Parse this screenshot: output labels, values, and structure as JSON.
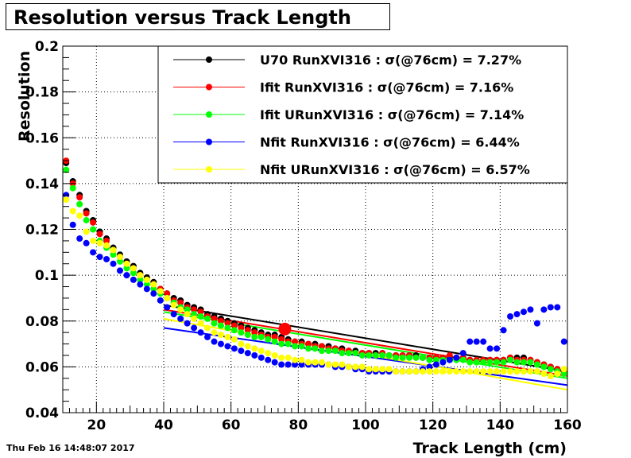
{
  "chart_data": {
    "type": "scatter",
    "title": "Resolution versus Track Length",
    "xlabel": "Track Length (cm)",
    "ylabel": "Resolution",
    "xlim": [
      10,
      160
    ],
    "ylim": [
      0.04,
      0.2
    ],
    "xticks": [
      20,
      40,
      60,
      80,
      100,
      120,
      140,
      160
    ],
    "yticks": [
      0.04,
      0.06,
      0.08,
      0.1,
      0.12,
      0.14,
      0.16,
      0.18,
      0.2
    ],
    "ytick_labels": [
      "0.04",
      "0.06",
      "0.08",
      "0.1",
      "0.12",
      "0.14",
      "0.16",
      "0.18",
      "0.2"
    ],
    "grid": true,
    "legend_position": "top-right",
    "series": [
      {
        "name": "U70  RunXVI316 : σ(@76cm) =  7.27%",
        "color": "#000000",
        "x": [
          11,
          13,
          15,
          17,
          19,
          21,
          23,
          25,
          27,
          29,
          31,
          33,
          35,
          37,
          39,
          41,
          43,
          45,
          47,
          49,
          51,
          53,
          55,
          57,
          59,
          61,
          63,
          65,
          67,
          69,
          71,
          73,
          75,
          77,
          79,
          81,
          83,
          85,
          87,
          89,
          91,
          93,
          95,
          97,
          99,
          101,
          103,
          105,
          107,
          109,
          111,
          113,
          115,
          117,
          119,
          121,
          123,
          125,
          127,
          129,
          131,
          133,
          135,
          137,
          139,
          141,
          143,
          145,
          147,
          149,
          151,
          153,
          155,
          157,
          159
        ],
        "y": [
          0.149,
          0.141,
          0.135,
          0.128,
          0.124,
          0.119,
          0.116,
          0.112,
          0.109,
          0.106,
          0.104,
          0.101,
          0.099,
          0.097,
          0.094,
          0.092,
          0.09,
          0.089,
          0.087,
          0.086,
          0.085,
          0.083,
          0.082,
          0.081,
          0.08,
          0.079,
          0.078,
          0.077,
          0.076,
          0.075,
          0.074,
          0.074,
          0.073,
          0.072,
          0.071,
          0.071,
          0.07,
          0.07,
          0.069,
          0.069,
          0.068,
          0.068,
          0.067,
          0.067,
          0.066,
          0.066,
          0.066,
          0.066,
          0.065,
          0.065,
          0.065,
          0.065,
          0.065,
          0.064,
          0.064,
          0.064,
          0.064,
          0.064,
          0.064,
          0.064,
          0.063,
          0.063,
          0.063,
          0.063,
          0.063,
          0.063,
          0.064,
          0.064,
          0.064,
          0.063,
          0.062,
          0.061,
          0.06,
          0.059,
          0.058
        ]
      },
      {
        "name": "Ifit RunXVI316 : σ(@76cm) =  7.16%",
        "color": "#ff0000",
        "x": [
          11,
          13,
          15,
          17,
          19,
          21,
          23,
          25,
          27,
          29,
          31,
          33,
          35,
          37,
          39,
          41,
          43,
          45,
          47,
          49,
          51,
          53,
          55,
          57,
          59,
          61,
          63,
          65,
          67,
          69,
          71,
          73,
          75,
          77,
          79,
          81,
          83,
          85,
          87,
          89,
          91,
          93,
          95,
          97,
          99,
          101,
          103,
          105,
          107,
          109,
          111,
          113,
          115,
          117,
          119,
          121,
          123,
          125,
          127,
          129,
          131,
          133,
          135,
          137,
          139,
          141,
          143,
          145,
          147,
          149,
          151,
          153,
          155,
          157,
          159
        ],
        "y": [
          0.15,
          0.14,
          0.134,
          0.127,
          0.123,
          0.118,
          0.115,
          0.111,
          0.108,
          0.105,
          0.103,
          0.1,
          0.098,
          0.096,
          0.094,
          0.092,
          0.089,
          0.088,
          0.086,
          0.085,
          0.084,
          0.082,
          0.081,
          0.08,
          0.079,
          0.078,
          0.077,
          0.076,
          0.075,
          0.074,
          0.073,
          0.073,
          0.072,
          0.071,
          0.071,
          0.07,
          0.07,
          0.069,
          0.069,
          0.068,
          0.068,
          0.067,
          0.067,
          0.066,
          0.066,
          0.066,
          0.065,
          0.066,
          0.065,
          0.065,
          0.065,
          0.065,
          0.064,
          0.064,
          0.064,
          0.064,
          0.064,
          0.065,
          0.064,
          0.064,
          0.063,
          0.063,
          0.063,
          0.063,
          0.063,
          0.063,
          0.064,
          0.063,
          0.063,
          0.063,
          0.062,
          0.061,
          0.06,
          0.059,
          0.058
        ]
      },
      {
        "name": "Ifit URunXVI316 : σ(@76cm) =  7.14%",
        "color": "#00ff00",
        "x": [
          11,
          13,
          15,
          17,
          19,
          21,
          23,
          25,
          27,
          29,
          31,
          33,
          35,
          37,
          39,
          41,
          43,
          45,
          47,
          49,
          51,
          53,
          55,
          57,
          59,
          61,
          63,
          65,
          67,
          69,
          71,
          73,
          75,
          77,
          79,
          81,
          83,
          85,
          87,
          89,
          91,
          93,
          95,
          97,
          99,
          101,
          103,
          105,
          107,
          109,
          111,
          113,
          115,
          117,
          119,
          121,
          123,
          125,
          127,
          129,
          131,
          133,
          135,
          137,
          139,
          141,
          143,
          145,
          147,
          149,
          151,
          153,
          155,
          157,
          159
        ],
        "y": [
          0.146,
          0.138,
          0.131,
          0.124,
          0.12,
          0.115,
          0.112,
          0.109,
          0.106,
          0.103,
          0.101,
          0.098,
          0.096,
          0.094,
          0.092,
          0.09,
          0.088,
          0.086,
          0.085,
          0.083,
          0.082,
          0.081,
          0.079,
          0.078,
          0.077,
          0.076,
          0.075,
          0.074,
          0.073,
          0.073,
          0.072,
          0.071,
          0.07,
          0.07,
          0.069,
          0.069,
          0.068,
          0.068,
          0.067,
          0.067,
          0.067,
          0.066,
          0.066,
          0.066,
          0.065,
          0.065,
          0.065,
          0.065,
          0.065,
          0.064,
          0.064,
          0.064,
          0.064,
          0.064,
          0.063,
          0.063,
          0.063,
          0.063,
          0.063,
          0.063,
          0.062,
          0.062,
          0.062,
          0.062,
          0.062,
          0.062,
          0.063,
          0.062,
          0.062,
          0.062,
          0.061,
          0.06,
          0.059,
          0.058,
          0.057
        ]
      },
      {
        "name": "Nfit RunXVI316 : σ(@76cm) =  6.44%",
        "color": "#0000ff",
        "x": [
          11,
          13,
          15,
          17,
          19,
          21,
          23,
          25,
          27,
          29,
          31,
          33,
          35,
          37,
          39,
          41,
          43,
          45,
          47,
          49,
          51,
          53,
          55,
          57,
          59,
          61,
          63,
          65,
          67,
          69,
          71,
          73,
          75,
          77,
          79,
          81,
          83,
          85,
          87,
          89,
          91,
          93,
          95,
          97,
          99,
          101,
          103,
          105,
          107,
          109,
          111,
          113,
          115,
          117,
          119,
          121,
          123,
          125,
          127,
          129,
          131,
          133,
          135,
          137,
          139,
          141,
          143,
          145,
          147,
          149,
          151,
          153,
          155,
          157,
          159
        ],
        "y": [
          0.135,
          0.122,
          0.116,
          0.114,
          0.11,
          0.108,
          0.107,
          0.105,
          0.102,
          0.1,
          0.098,
          0.096,
          0.094,
          0.092,
          0.089,
          0.086,
          0.083,
          0.081,
          0.079,
          0.077,
          0.075,
          0.073,
          0.071,
          0.07,
          0.069,
          0.068,
          0.067,
          0.066,
          0.065,
          0.064,
          0.063,
          0.062,
          0.061,
          0.061,
          0.061,
          0.061,
          0.061,
          0.061,
          0.061,
          0.061,
          0.06,
          0.06,
          0.06,
          0.059,
          0.059,
          0.058,
          0.058,
          0.058,
          0.058,
          0.058,
          0.058,
          0.058,
          0.058,
          0.059,
          0.06,
          0.061,
          0.062,
          0.063,
          0.064,
          0.066,
          0.071,
          0.071,
          0.071,
          0.068,
          0.068,
          0.076,
          0.082,
          0.083,
          0.084,
          0.085,
          0.079,
          0.085,
          0.086,
          0.086,
          0.071
        ]
      },
      {
        "name": "Nfit URunXVI316 : σ(@76cm) =  6.57%",
        "color": "#ffff00",
        "x": [
          11,
          13,
          15,
          17,
          19,
          21,
          23,
          25,
          27,
          29,
          31,
          33,
          35,
          37,
          39,
          41,
          43,
          45,
          47,
          49,
          51,
          53,
          55,
          57,
          59,
          61,
          63,
          65,
          67,
          69,
          71,
          73,
          75,
          77,
          79,
          81,
          83,
          85,
          87,
          89,
          91,
          93,
          95,
          97,
          99,
          101,
          103,
          105,
          107,
          109,
          111,
          113,
          115,
          117,
          119,
          121,
          123,
          125,
          127,
          129,
          131,
          133,
          135,
          137,
          139,
          141,
          143,
          145,
          147,
          149,
          151,
          153,
          155,
          157,
          159
        ],
        "y": [
          0.133,
          0.128,
          0.126,
          0.119,
          0.115,
          0.114,
          0.113,
          0.111,
          0.108,
          0.105,
          0.103,
          0.1,
          0.098,
          0.096,
          0.093,
          0.09,
          0.087,
          0.085,
          0.083,
          0.081,
          0.079,
          0.077,
          0.075,
          0.074,
          0.073,
          0.072,
          0.07,
          0.069,
          0.068,
          0.067,
          0.066,
          0.065,
          0.064,
          0.064,
          0.063,
          0.063,
          0.062,
          0.062,
          0.062,
          0.061,
          0.061,
          0.061,
          0.06,
          0.06,
          0.06,
          0.059,
          0.059,
          0.059,
          0.059,
          0.058,
          0.058,
          0.058,
          0.058,
          0.058,
          0.058,
          0.058,
          0.058,
          0.058,
          0.058,
          0.058,
          0.058,
          0.058,
          0.058,
          0.058,
          0.058,
          0.058,
          0.058,
          0.058,
          0.058,
          0.058,
          0.058,
          0.057,
          0.056,
          0.057,
          0.059
        ]
      }
    ],
    "fit_lines": [
      {
        "series": "U70  RunXVI316 : σ(@76cm) =  7.27%",
        "color": "#000000",
        "x": [
          40,
          160
        ],
        "y": [
          0.087,
          0.058
        ]
      },
      {
        "series": "Ifit RunXVI316 : σ(@76cm) =  7.16%",
        "color": "#ff0000",
        "x": [
          40,
          160
        ],
        "y": [
          0.085,
          0.056
        ]
      },
      {
        "series": "Ifit URunXVI316 : σ(@76cm) =  7.14%",
        "color": "#00ff00",
        "x": [
          40,
          160
        ],
        "y": [
          0.084,
          0.055
        ]
      },
      {
        "series": "Nfit RunXVI316 : σ(@76cm) =  6.44%",
        "color": "#0000ff",
        "x": [
          40,
          160
        ],
        "y": [
          0.077,
          0.052
        ]
      },
      {
        "series": "Nfit URunXVI316 : σ(@76cm) =  6.57%",
        "color": "#ffff00",
        "x": [
          40,
          160
        ],
        "y": [
          0.081,
          0.05
        ]
      }
    ],
    "highlight_point": {
      "x": 76,
      "y": 0.0765,
      "color": "#ff0000"
    }
  },
  "footer": {
    "timestamp": "Thu Feb 16 14:48:07 2017"
  }
}
